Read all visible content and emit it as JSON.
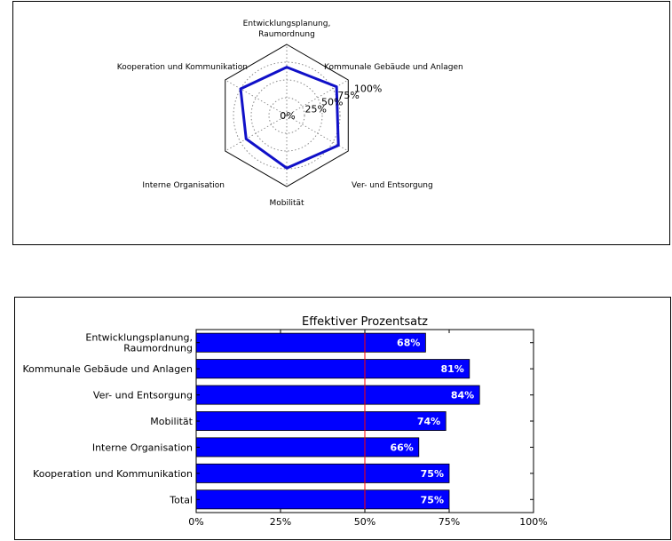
{
  "chart_data": [
    {
      "type": "radar",
      "categories": [
        [
          "Entwicklungsplanung,",
          "Raumordnung"
        ],
        [
          "Kommunale Gebäude und Anlagen"
        ],
        [
          "Ver- und Entsorgung"
        ],
        [
          "Mobilität"
        ],
        [
          "Interne Organisation"
        ],
        [
          "Kooperation und Kommunikation"
        ]
      ],
      "values": [
        68,
        81,
        84,
        74,
        66,
        75
      ],
      "rlim": [
        0,
        100
      ],
      "radial_ticks": [
        "0%",
        "25%",
        "50%",
        "75%",
        "100%"
      ],
      "radial_tick_values": [
        0,
        25,
        50,
        75,
        100
      ],
      "grid": true,
      "line_color": "#1010c8"
    },
    {
      "type": "bar",
      "orientation": "horizontal",
      "title": "Effektiver Prozentsatz",
      "categories": [
        [
          "Entwicklungsplanung,",
          "Raumordnung"
        ],
        [
          "Kommunale Gebäude und Anlagen"
        ],
        [
          "Ver- und Entsorgung"
        ],
        [
          "Mobilität"
        ],
        [
          "Interne Organisation"
        ],
        [
          "Kooperation und Kommunikation"
        ],
        [
          "Total"
        ]
      ],
      "values": [
        68,
        81,
        84,
        74,
        66,
        75,
        75
      ],
      "data_labels": [
        "68%",
        "81%",
        "84%",
        "74%",
        "66%",
        "75%",
        "75%"
      ],
      "xlim": [
        0,
        100
      ],
      "x_ticks": [
        "0%",
        "25%",
        "50%",
        "75%",
        "100%"
      ],
      "x_tick_values": [
        0,
        25,
        50,
        75,
        100
      ],
      "reference_line": 50,
      "bar_color": "#0000ff",
      "reference_line_color": "#ff0000"
    }
  ]
}
